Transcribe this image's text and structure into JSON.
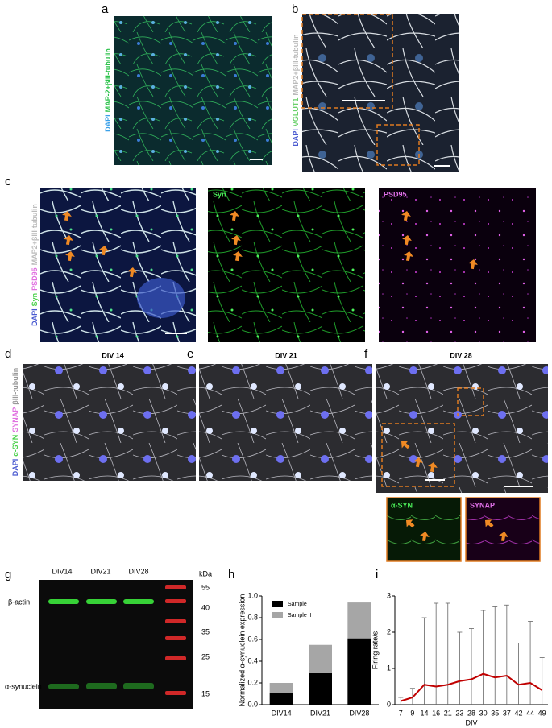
{
  "figure": {
    "a": {
      "label": "a",
      "stains": [
        "DAPI",
        "MAP-2+βIII-tubulin"
      ]
    },
    "b": {
      "label": "b",
      "stains": [
        "DAPI",
        "VGLUT1",
        "MAP2+βIII-tubulin"
      ]
    },
    "c": {
      "label": "c",
      "stains": [
        "DAPI",
        "Syn",
        "PSD95",
        "MAP2+βIII-tubulin"
      ],
      "channels": [
        "Syn",
        "PSD95"
      ]
    },
    "d": {
      "label": "d",
      "title": "DIV 14",
      "stains": [
        "DAPI",
        "α-SYN",
        "SYNAP",
        "βIII-tubulin"
      ]
    },
    "e": {
      "label": "e",
      "title": "DIV 21"
    },
    "f": {
      "label": "f",
      "title": "DIV 28",
      "insets": [
        "α-SYN",
        "SYNAP"
      ]
    },
    "g": {
      "label": "g",
      "lanes": [
        "DIV14",
        "DIV21",
        "DIV28"
      ],
      "unit": "kDa",
      "markers": [
        55,
        40,
        35,
        25,
        15
      ],
      "bands": [
        "β-actin",
        "α-synuclein"
      ]
    },
    "h": {
      "label": "h"
    },
    "i": {
      "label": "i"
    }
  },
  "chart_data": [
    {
      "type": "bar",
      "stacked": true,
      "ylabel": "Normalized α-synuclein expression",
      "categories": [
        "DIV14",
        "DIV21",
        "DIV28"
      ],
      "series": [
        {
          "name": "Sample I",
          "color": "#000000",
          "values": [
            0.11,
            0.29,
            0.61
          ]
        },
        {
          "name": "Sample II",
          "color": "#a6a6a6",
          "values": [
            0.09,
            0.26,
            0.33
          ]
        }
      ],
      "ylim": [
        0,
        1
      ],
      "yticks": [
        {
          "value": 0,
          "label": "0.0"
        },
        {
          "value": 0.2,
          "label": "0.2"
        },
        {
          "value": 0.4,
          "label": "0.4"
        },
        {
          "value": 0.6,
          "label": "0.6"
        },
        {
          "value": 0.8,
          "label": "0.8"
        },
        {
          "value": 1,
          "label": "1.0"
        }
      ]
    },
    {
      "type": "line",
      "xlabel": "DIV",
      "ylabel": "Firing rate/s",
      "color": "#c00000",
      "categories": [
        "7",
        "9",
        "14",
        "16",
        "21",
        "23",
        "28",
        "30",
        "35",
        "37",
        "42",
        "44",
        "49"
      ],
      "values": [
        0.1,
        0.2,
        0.55,
        0.5,
        0.55,
        0.65,
        0.7,
        0.85,
        0.75,
        0.8,
        0.55,
        0.6,
        0.4
      ],
      "max": [
        0.2,
        0.45,
        2.4,
        2.8,
        2.8,
        2.0,
        2.1,
        2.6,
        2.7,
        2.75,
        1.7,
        2.3,
        1.3
      ],
      "ylim": [
        0,
        3
      ],
      "yticks": [
        0,
        1,
        2,
        3
      ]
    }
  ]
}
